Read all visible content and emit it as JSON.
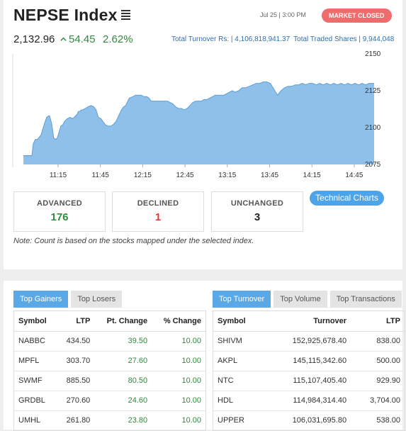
{
  "header": {
    "title": "NEPSE Index",
    "datetime": "Jul 25 | 3:00 PM",
    "status": "MARKET CLOSED",
    "value": "2,132.96",
    "change": "54.45",
    "change_pct": "2.62%",
    "turnover_label": "Total Turnover Rs: | 4,106,818,941.37",
    "shares_label": "Total Traded Shares | 9,944,048"
  },
  "chart_data": {
    "type": "area",
    "x_ticks": [
      "11:15",
      "11:45",
      "12:15",
      "12:45",
      "13:15",
      "13:45",
      "14:15",
      "14:45"
    ],
    "y_ticks": [
      "2150",
      "2125",
      "2100",
      "2075"
    ],
    "ylim": [
      2075,
      2150
    ],
    "color": "#8fc0ea",
    "line_color": "#5a9fd8",
    "x": [
      0,
      3,
      7,
      11,
      12,
      14,
      17,
      20,
      25,
      30,
      33,
      36,
      37,
      40,
      43,
      46,
      48,
      50,
      53,
      56,
      58,
      62,
      66,
      70,
      74,
      76,
      78,
      80,
      82,
      84,
      88,
      91,
      96,
      100,
      103,
      106,
      110,
      113,
      116,
      120,
      124,
      127,
      131,
      135,
      139,
      142,
      145,
      147,
      150,
      155,
      159,
      163,
      167,
      171,
      175,
      178,
      181,
      184,
      188,
      192,
      196,
      200,
      204,
      208,
      212,
      216,
      220,
      224,
      228,
      232,
      236,
      240,
      244,
      248,
      252,
      256,
      260,
      264,
      268,
      272,
      276,
      280,
      284,
      288,
      292,
      296,
      300,
      305,
      310,
      315,
      320,
      325,
      330,
      335,
      340,
      345,
      350,
      355,
      360,
      365,
      370,
      375,
      380,
      385,
      390,
      395,
      400,
      405,
      410,
      415,
      420,
      425,
      430,
      435,
      440,
      445,
      450,
      455,
      460,
      465,
      470,
      475,
      480,
      485,
      490,
      494,
      497
    ],
    "values": [
      2081,
      2081,
      2081,
      2081,
      2081,
      2089,
      2092,
      2092,
      2095,
      2103,
      2107,
      2108,
      2108,
      2103,
      2093,
      2092,
      2093,
      2096,
      2101,
      2102,
      2104,
      2106,
      2107,
      2106,
      2108,
      2109,
      2111,
      2111,
      2112,
      2112,
      2113,
      2114,
      2115,
      2114,
      2112,
      2107,
      2106,
      2104,
      2102,
      2101,
      2101,
      2102,
      2104,
      2108,
      2112,
      2114,
      2115,
      2117,
      2120,
      2121,
      2122,
      2122,
      2122,
      2121,
      2121,
      2120,
      2118,
      2118,
      2118,
      2118,
      2118,
      2118,
      2118,
      2117,
      2116,
      2114,
      2113,
      2113,
      2112,
      2113,
      2115,
      2117,
      2118,
      2118,
      2118,
      2119,
      2119,
      2120,
      2121,
      2122,
      2122,
      2122,
      2122,
      2123,
      2124,
      2125,
      2124,
      2125,
      2127,
      2127,
      2128,
      2129,
      2130,
      2130,
      2131,
      2131,
      2130,
      2126,
      2122,
      2125,
      2127,
      2128,
      2128,
      2129,
      2129,
      2130,
      2129,
      2130,
      2130,
      2129,
      2130,
      2129,
      2130,
      2129,
      2130,
      2129,
      2130,
      2129,
      2130,
      2129,
      2130,
      2129,
      2130,
      2129,
      2130,
      2130,
      2130
    ]
  },
  "stats": {
    "advanced_label": "ADVANCED",
    "advanced": "176",
    "declined_label": "DECLINED",
    "declined": "1",
    "unchanged_label": "UNCHANGED",
    "unchanged": "3"
  },
  "tech_button": "Technical Charts",
  "note": "Note: Count is based on the stocks mapped under the selected index.",
  "left_tabs": [
    "Top Gainers",
    "Top Losers"
  ],
  "right_tabs": [
    "Top Turnover",
    "Top Volume",
    "Top Transactions"
  ],
  "gainers": {
    "headers": [
      "Symbol",
      "LTP",
      "Pt. Change",
      "% Change"
    ],
    "rows": [
      [
        "NABBC",
        "434.50",
        "39.50",
        "10.00"
      ],
      [
        "MPFL",
        "303.70",
        "27.60",
        "10.00"
      ],
      [
        "SWMF",
        "885.50",
        "80.50",
        "10.00"
      ],
      [
        "GRDBL",
        "270.60",
        "24.60",
        "10.00"
      ],
      [
        "UMHL",
        "261.80",
        "23.80",
        "10.00"
      ]
    ]
  },
  "turnover_table": {
    "headers": [
      "Symbol",
      "Turnover",
      "LTP"
    ],
    "rows": [
      [
        "SHIVM",
        "152,925,678.40",
        "838.00"
      ],
      [
        "AKPL",
        "145,115,342.60",
        "500.00"
      ],
      [
        "NTC",
        "115,107,405.40",
        "929.90"
      ],
      [
        "HDL",
        "114,984,314.40",
        "3,704.00"
      ],
      [
        "UPPER",
        "106,031,695.80",
        "538.00"
      ]
    ]
  }
}
